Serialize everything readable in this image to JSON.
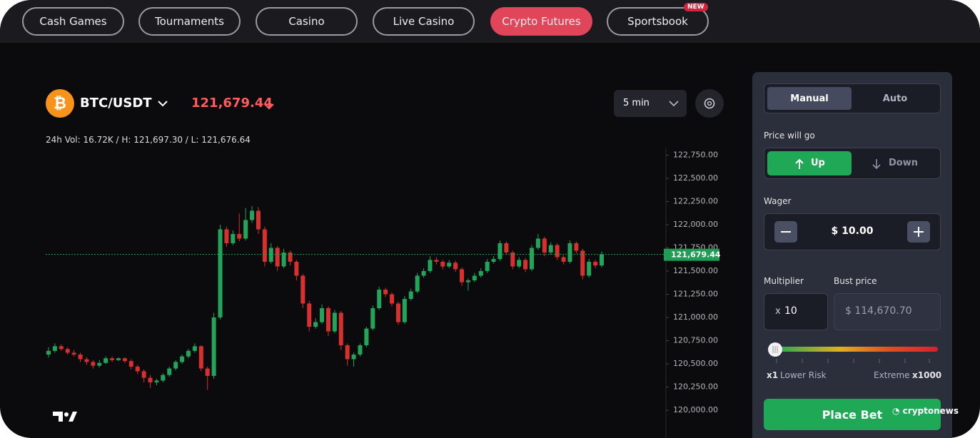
{
  "nav": {
    "tabs": [
      "Cash Games",
      "Tournaments",
      "Casino",
      "Live Casino",
      "Crypto Futures",
      "Sportsbook"
    ],
    "badge": "NEW"
  },
  "header": {
    "coin_symbol": "₿",
    "pair": "BTC/USDT",
    "price": "121,679.44",
    "stats": "24h Vol: 16.72K / H: 121,697.30 / L: 121,676.64",
    "interval": "5 min"
  },
  "chart_data": {
    "type": "candlestick",
    "up_color": "#22a55a",
    "down_color": "#d8302f",
    "ylim": [
      119770,
      122830
    ],
    "yticks": [
      {
        "value": 120000,
        "label": "120,000.00"
      },
      {
        "value": 120250,
        "label": "120,250.00"
      },
      {
        "value": 120500,
        "label": "120,500.00"
      },
      {
        "value": 120750,
        "label": "120,750.00"
      },
      {
        "value": 121000,
        "label": "121,000.00"
      },
      {
        "value": 121250,
        "label": "121,250.00"
      },
      {
        "value": 121500,
        "label": "121,500.00"
      },
      {
        "value": 121750,
        "label": "121,750.00"
      },
      {
        "value": 122000,
        "label": "122,000.00"
      },
      {
        "value": 122250,
        "label": "122,250.00"
      },
      {
        "value": 122500,
        "label": "122,500.00"
      },
      {
        "value": 122750,
        "label": "122,750.00"
      }
    ],
    "last_price": {
      "value": 121679.44,
      "label": "121,679.44"
    },
    "candles": [
      [
        120600,
        120680,
        120570,
        120640
      ],
      [
        120640,
        120720,
        120620,
        120690
      ],
      [
        120690,
        120710,
        120640,
        120660
      ],
      [
        120660,
        120680,
        120600,
        120620
      ],
      [
        120620,
        120650,
        120580,
        120600
      ],
      [
        120600,
        120620,
        120520,
        120550
      ],
      [
        120550,
        120570,
        120490,
        120520
      ],
      [
        120520,
        120540,
        120450,
        120480
      ],
      [
        120480,
        120540,
        120460,
        120510
      ],
      [
        120510,
        120580,
        120500,
        120560
      ],
      [
        120560,
        120580,
        120520,
        120540
      ],
      [
        120540,
        120570,
        120530,
        120560
      ],
      [
        120560,
        120570,
        120510,
        120530
      ],
      [
        120530,
        120550,
        120440,
        120470
      ],
      [
        120470,
        120490,
        120390,
        120420
      ],
      [
        120420,
        120440,
        120300,
        120350
      ],
      [
        120350,
        120380,
        120240,
        120300
      ],
      [
        120300,
        120340,
        120270,
        120320
      ],
      [
        120320,
        120400,
        120300,
        120380
      ],
      [
        120380,
        120470,
        120360,
        120450
      ],
      [
        120450,
        120540,
        120430,
        120520
      ],
      [
        120520,
        120600,
        120500,
        120580
      ],
      [
        120580,
        120660,
        120560,
        120640
      ],
      [
        120640,
        120720,
        120620,
        120690
      ],
      [
        120690,
        120700,
        120420,
        120450
      ],
      [
        120450,
        120470,
        120220,
        120370
      ],
      [
        120370,
        121050,
        120340,
        121000
      ],
      [
        121000,
        122000,
        120980,
        121950
      ],
      [
        121950,
        121980,
        121760,
        121800
      ],
      [
        121800,
        121940,
        121780,
        121900
      ],
      [
        121900,
        122120,
        121820,
        121850
      ],
      [
        121850,
        122180,
        121830,
        122050
      ],
      [
        122050,
        122200,
        122020,
        122150
      ],
      [
        122150,
        122190,
        121900,
        121950
      ],
      [
        121950,
        121980,
        121550,
        121600
      ],
      [
        121600,
        121800,
        121580,
        121750
      ],
      [
        121750,
        121770,
        121500,
        121550
      ],
      [
        121550,
        121740,
        121530,
        121700
      ],
      [
        121700,
        121720,
        121560,
        121600
      ],
      [
        121600,
        121620,
        121400,
        121450
      ],
      [
        121450,
        121470,
        121100,
        121150
      ],
      [
        121150,
        121180,
        120850,
        120900
      ],
      [
        120900,
        120990,
        120880,
        120950
      ],
      [
        120950,
        121140,
        120930,
        121100
      ],
      [
        121100,
        121120,
        120800,
        120850
      ],
      [
        120850,
        121080,
        120830,
        121050
      ],
      [
        121050,
        121070,
        120650,
        120700
      ],
      [
        120700,
        120720,
        120480,
        120550
      ],
      [
        120550,
        120620,
        120470,
        120600
      ],
      [
        120600,
        120720,
        120580,
        120700
      ],
      [
        120700,
        120900,
        120680,
        120880
      ],
      [
        120880,
        121130,
        120860,
        121100
      ],
      [
        121100,
        121330,
        121080,
        121300
      ],
      [
        121300,
        121320,
        121220,
        121250
      ],
      [
        121250,
        121270,
        121120,
        121150
      ],
      [
        121150,
        121170,
        120920,
        120950
      ],
      [
        120950,
        121230,
        120930,
        121200
      ],
      [
        121200,
        121310,
        121180,
        121280
      ],
      [
        121280,
        121480,
        121260,
        121450
      ],
      [
        121450,
        121530,
        121430,
        121500
      ],
      [
        121500,
        121660,
        121480,
        121620
      ],
      [
        121620,
        121650,
        121570,
        121600
      ],
      [
        121600,
        121620,
        121520,
        121550
      ],
      [
        121550,
        121620,
        121530,
        121590
      ],
      [
        121590,
        121610,
        121490,
        121520
      ],
      [
        121520,
        121540,
        121340,
        121380
      ],
      [
        121380,
        121420,
        121290,
        121400
      ],
      [
        121400,
        121480,
        121380,
        121450
      ],
      [
        121450,
        121530,
        121430,
        121500
      ],
      [
        121500,
        121630,
        121480,
        121600
      ],
      [
        121600,
        121660,
        121580,
        121630
      ],
      [
        121630,
        121830,
        121610,
        121800
      ],
      [
        121800,
        121820,
        121680,
        121700
      ],
      [
        121700,
        121720,
        121520,
        121550
      ],
      [
        121550,
        121650,
        121530,
        121620
      ],
      [
        121620,
        121640,
        121490,
        121520
      ],
      [
        121520,
        121780,
        121500,
        121750
      ],
      [
        121750,
        121900,
        121730,
        121850
      ],
      [
        121850,
        121870,
        121660,
        121700
      ],
      [
        121700,
        121810,
        121680,
        121780
      ],
      [
        121780,
        121800,
        121620,
        121650
      ],
      [
        121650,
        121670,
        121570,
        121600
      ],
      [
        121600,
        121830,
        121580,
        121800
      ],
      [
        121800,
        121820,
        121690,
        121720
      ],
      [
        121720,
        121740,
        121410,
        121450
      ],
      [
        121450,
        121630,
        121430,
        121600
      ],
      [
        121600,
        121620,
        121530,
        121560
      ],
      [
        121560,
        121710,
        121540,
        121679.44
      ]
    ]
  },
  "panel": {
    "tabs": [
      "Manual",
      "Auto"
    ],
    "direction_label": "Price will go",
    "directions": [
      "Up",
      "Down"
    ],
    "wager_label": "Wager",
    "wager": "$ 10.00",
    "multiplier_label": "Multiplier",
    "multiplier_prefix": "x",
    "multiplier": "10",
    "bust_label": "Bust price",
    "bust_price": "$ 114,670.70",
    "risk_min": "x1",
    "risk_min_label": "Lower Risk",
    "risk_max_label": "Extreme",
    "risk_max": "x1000",
    "place_bet": "Place Bet"
  },
  "watermark": "cryptonews"
}
